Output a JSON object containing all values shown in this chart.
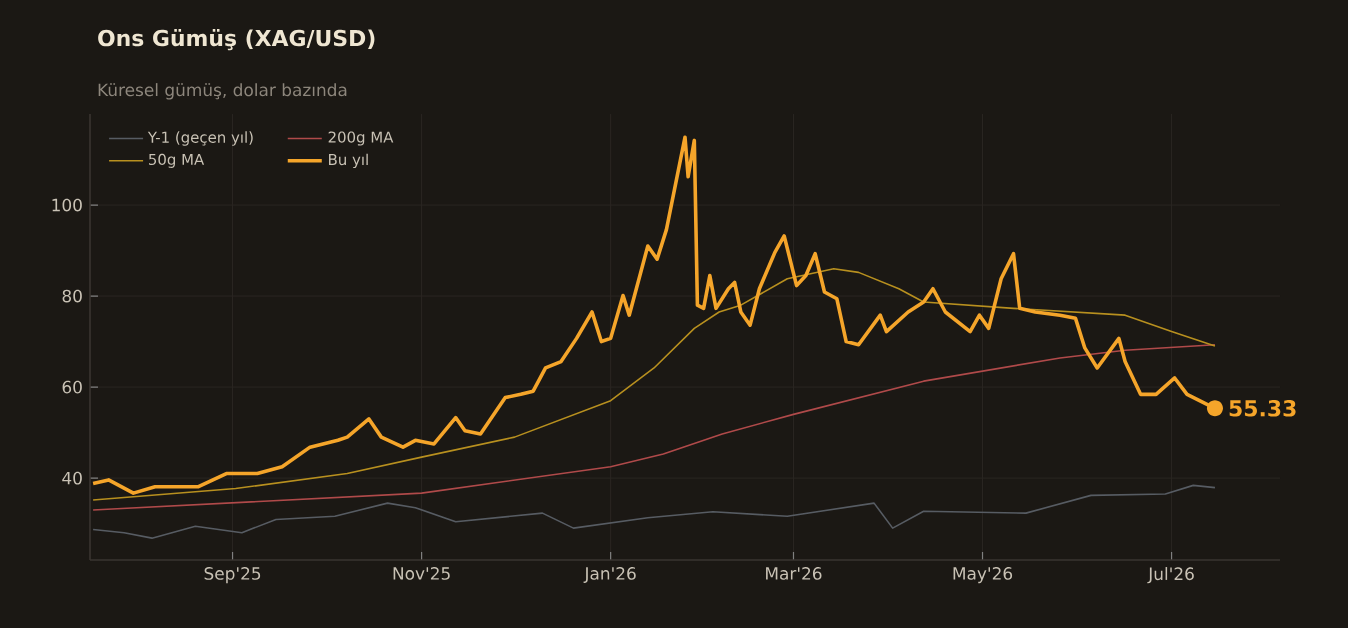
{
  "chart_data": {
    "type": "line",
    "title": "Ons Gümüş (XAG/USD)",
    "subtitle": "Küresel gümüş, dolar bazında",
    "xlim": [
      "2025-07-17",
      "2026-08-05"
    ],
    "ylim": [
      22,
      120
    ],
    "xticks": [
      {
        "value": "2025-09-01",
        "label": "Sep'25"
      },
      {
        "value": "2025-11-01",
        "label": "Nov'25"
      },
      {
        "value": "2026-01-01",
        "label": "Jan'26"
      },
      {
        "value": "2026-03-01",
        "label": "Mar'26"
      },
      {
        "value": "2026-05-01",
        "label": "May'26"
      },
      {
        "value": "2026-07-01",
        "label": "Jul'26"
      }
    ],
    "yticks": [
      40,
      60,
      80,
      100
    ],
    "grid": true,
    "legend": "top left",
    "marker": "none",
    "line_style": "solid",
    "annotations": [
      {
        "text": "55.33",
        "x": "2026-07-15",
        "y": 55.33
      }
    ],
    "series": [
      {
        "name": "Y-1 (geçen yıl)",
        "color": "#575c63",
        "x": [
          "2025-07-18",
          "2025-07-28",
          "2025-08-06",
          "2025-08-20",
          "2025-09-04",
          "2025-09-15",
          "2025-10-04",
          "2025-10-21",
          "2025-10-30",
          "2025-11-12",
          "2025-12-10",
          "2025-12-20",
          "2026-01-13",
          "2026-02-03",
          "2026-02-27",
          "2026-03-27",
          "2026-04-02",
          "2026-04-12",
          "2026-05-15",
          "2026-06-05",
          "2026-06-29",
          "2026-07-08",
          "2026-07-15"
        ],
        "values": [
          28.7,
          28,
          26.8,
          29.4,
          28,
          30.9,
          31.6,
          34.5,
          33.5,
          30.4,
          32.3,
          29,
          31.3,
          32.6,
          31.6,
          34.5,
          29,
          32.7,
          32.3,
          36.2,
          36.5,
          38.4,
          37.9
        ]
      },
      {
        "name": "200g MA",
        "color": "#b04a4a",
        "x": [
          "2025-07-18",
          "2025-11-01",
          "2026-01-01",
          "2026-01-18",
          "2026-02-06",
          "2026-03-01",
          "2026-04-12",
          "2026-05-26",
          "2026-06-16",
          "2026-07-15"
        ],
        "values": [
          33,
          36.7,
          42.5,
          45.3,
          49.7,
          54,
          61.3,
          66.4,
          68.1,
          69.3
        ]
      },
      {
        "name": "50g MA",
        "color": "#b8901f",
        "x": [
          "2025-07-18",
          "2025-09-02",
          "2025-10-08",
          "2025-11-01",
          "2025-12-01",
          "2026-01-01",
          "2026-01-15",
          "2026-01-28",
          "2026-02-05",
          "2026-02-12",
          "2026-02-27",
          "2026-03-14",
          "2026-03-22",
          "2026-04-04",
          "2026-04-12",
          "2026-05-11",
          "2026-06-16",
          "2026-07-01",
          "2026-07-15"
        ],
        "values": [
          35.2,
          37.7,
          41,
          44.6,
          49,
          57,
          64.2,
          72.9,
          76.5,
          78,
          83.8,
          86,
          85.2,
          81.6,
          78.7,
          77.3,
          75.8,
          72.2,
          69
        ]
      },
      {
        "name": "Bu yıl",
        "color": "#f5a52a",
        "x": [
          "2025-07-18",
          "2025-07-23",
          "2025-07-31",
          "2025-08-07",
          "2025-08-21",
          "2025-08-30",
          "2025-09-09",
          "2025-09-17",
          "2025-09-26",
          "2025-10-05",
          "2025-10-08",
          "2025-10-15",
          "2025-10-19",
          "2025-10-26",
          "2025-10-30",
          "2025-11-05",
          "2025-11-12",
          "2025-11-15",
          "2025-11-20",
          "2025-11-28",
          "2025-12-03",
          "2025-12-07",
          "2025-12-11",
          "2025-12-16",
          "2025-12-21",
          "2025-12-26",
          "2025-12-29",
          "2026-01-01",
          "2026-01-05",
          "2026-01-07",
          "2026-01-13",
          "2026-01-16",
          "2026-01-19",
          "2026-01-25",
          "2026-01-26",
          "2026-01-28",
          "2026-01-29",
          "2026-01-31",
          "2026-02-02",
          "2026-02-04",
          "2026-02-08",
          "2026-02-10",
          "2026-02-12",
          "2026-02-15",
          "2026-02-18",
          "2026-02-23",
          "2026-02-26",
          "2026-03-02",
          "2026-03-05",
          "2026-03-08",
          "2026-03-11",
          "2026-03-15",
          "2026-03-18",
          "2026-03-22",
          "2026-03-29",
          "2026-03-31",
          "2026-04-07",
          "2026-04-12",
          "2026-04-15",
          "2026-04-19",
          "2026-04-27",
          "2026-04-30",
          "2026-05-03",
          "2026-05-07",
          "2026-05-11",
          "2026-05-13",
          "2026-05-18",
          "2026-05-26",
          "2026-05-31",
          "2026-06-03",
          "2026-06-07",
          "2026-06-14",
          "2026-06-16",
          "2026-06-21",
          "2026-06-26",
          "2026-07-02",
          "2026-07-06",
          "2026-07-15"
        ],
        "values": [
          38.8,
          39.6,
          36.7,
          38.1,
          38.1,
          41,
          41,
          42.5,
          46.8,
          48.3,
          49,
          53,
          49,
          46.8,
          48.3,
          47.5,
          53.3,
          50.4,
          49.7,
          57.7,
          58.4,
          59.1,
          64.2,
          65.6,
          70.7,
          76.5,
          70,
          70.7,
          80.1,
          75.8,
          91,
          88.1,
          94.6,
          114.9,
          106.2,
          114.2,
          78,
          77.3,
          84.5,
          77.3,
          81.6,
          83,
          76.5,
          73.6,
          81.6,
          89.6,
          93.2,
          82.3,
          84.5,
          89.3,
          80.9,
          79.4,
          70,
          69.3,
          75.8,
          72.2,
          76.5,
          78.7,
          81.6,
          76.5,
          72.2,
          75.8,
          72.9,
          83.8,
          89.3,
          77.3,
          76.5,
          75.8,
          75.1,
          68.6,
          64.2,
          70.7,
          65.6,
          58.4,
          58.4,
          62,
          58.4,
          55.33
        ]
      }
    ]
  }
}
